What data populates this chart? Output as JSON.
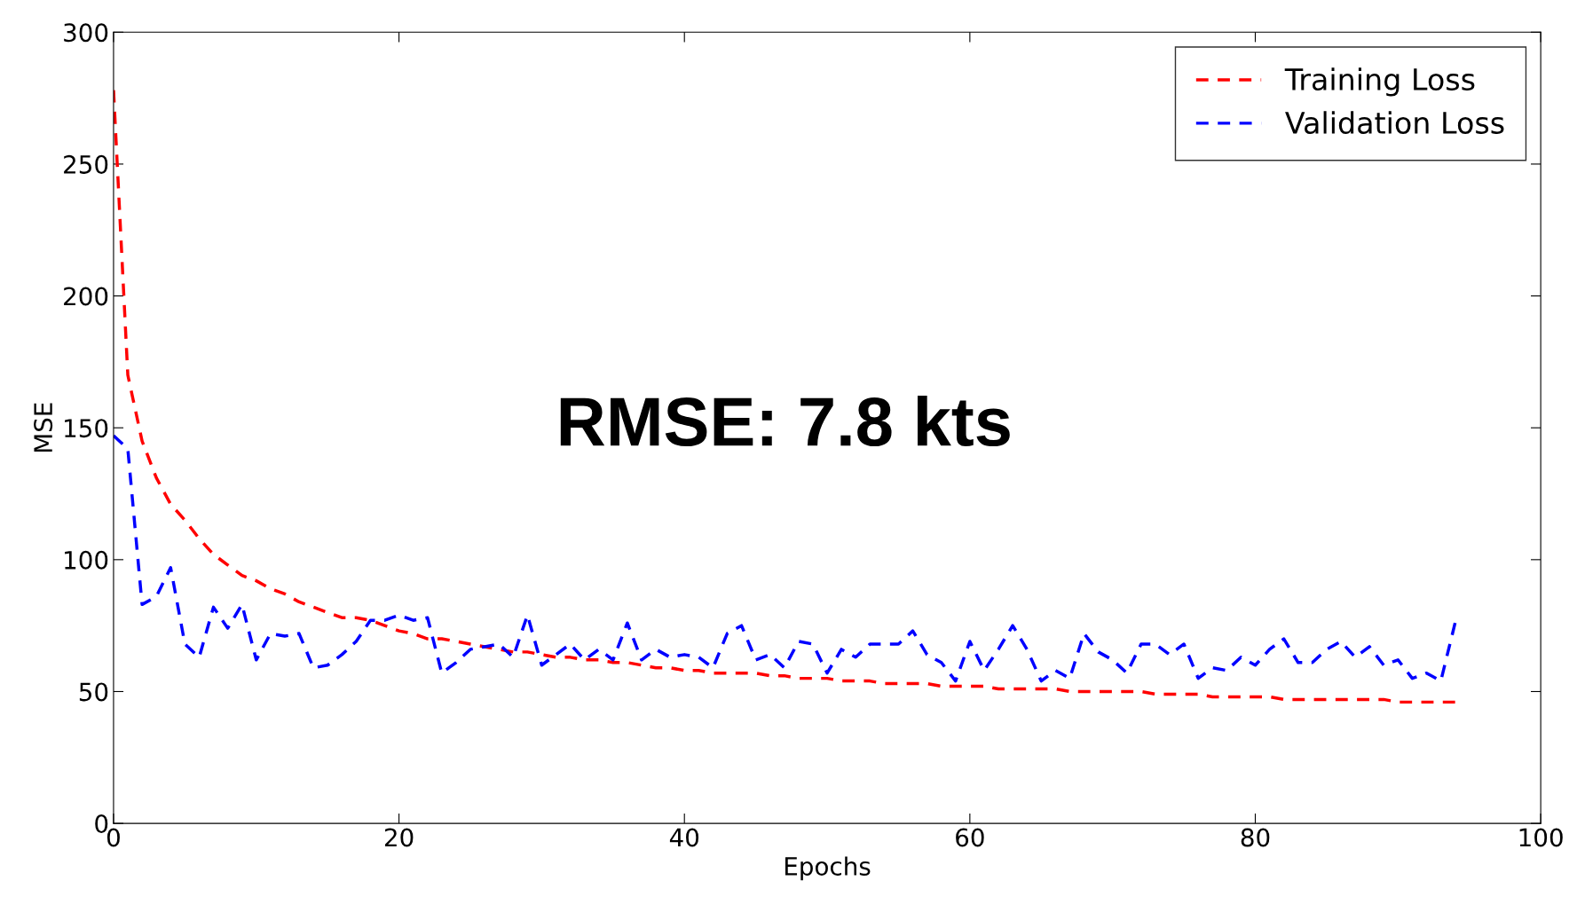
{
  "chart_data": {
    "type": "line",
    "xlabel": "Epochs",
    "ylabel": "MSE",
    "x": [
      0,
      1,
      2,
      3,
      4,
      5,
      6,
      7,
      8,
      9,
      10,
      11,
      12,
      13,
      14,
      15,
      16,
      17,
      18,
      19,
      20,
      21,
      22,
      23,
      24,
      25,
      26,
      27,
      28,
      29,
      30,
      31,
      32,
      33,
      34,
      35,
      36,
      37,
      38,
      39,
      40,
      41,
      42,
      43,
      44,
      45,
      46,
      47,
      48,
      49,
      50,
      51,
      52,
      53,
      54,
      55,
      56,
      57,
      58,
      59,
      60,
      61,
      62,
      63,
      64,
      65,
      66,
      67,
      68,
      69,
      70,
      71,
      72,
      73,
      74,
      75,
      76,
      77,
      78,
      79,
      80,
      81,
      82,
      83,
      84,
      85,
      86,
      87,
      88,
      89,
      90,
      91,
      92,
      93,
      94
    ],
    "series": [
      {
        "name": "Training Loss",
        "color": "#ff0000",
        "values": [
          278,
          170,
          145,
          131,
          121,
          115,
          108,
          102,
          98,
          94,
          92,
          89,
          87,
          84,
          82,
          80,
          78,
          78,
          77,
          75,
          73,
          72,
          70,
          70,
          69,
          68,
          67,
          66,
          65,
          65,
          64,
          63,
          63,
          62,
          62,
          61,
          61,
          60,
          59,
          59,
          58,
          58,
          57,
          57,
          57,
          57,
          56,
          56,
          55,
          55,
          55,
          54,
          54,
          54,
          53,
          53,
          53,
          53,
          52,
          52,
          52,
          52,
          51,
          51,
          51,
          51,
          51,
          50,
          50,
          50,
          50,
          50,
          50,
          49,
          49,
          49,
          49,
          48,
          48,
          48,
          48,
          48,
          47,
          47,
          47,
          47,
          47,
          47,
          47,
          47,
          46,
          46,
          46,
          46,
          46
        ]
      },
      {
        "name": "Validation Loss",
        "color": "#0000ff",
        "values": [
          147,
          142,
          83,
          86,
          97,
          68,
          63,
          82,
          74,
          83,
          62,
          72,
          71,
          72,
          59,
          60,
          64,
          69,
          77,
          77,
          79,
          77,
          78,
          57,
          61,
          66,
          67,
          68,
          63,
          79,
          60,
          64,
          68,
          62,
          66,
          62,
          76,
          62,
          66,
          63,
          64,
          63,
          59,
          72,
          75,
          62,
          64,
          59,
          69,
          68,
          57,
          66,
          63,
          68,
          68,
          68,
          73,
          64,
          61,
          54,
          69,
          58,
          66,
          75,
          66,
          54,
          58,
          55,
          72,
          65,
          62,
          57,
          68,
          68,
          64,
          68,
          55,
          59,
          58,
          63,
          60,
          66,
          70,
          61,
          61,
          66,
          69,
          63,
          67,
          60,
          62,
          55,
          57,
          54,
          76
        ]
      }
    ],
    "xlim": [
      0,
      100
    ],
    "xticks": [
      0,
      20,
      40,
      60,
      80,
      100
    ],
    "ylim": [
      0,
      300
    ],
    "yticks": [
      0,
      50,
      100,
      150,
      200,
      250,
      300
    ],
    "line_style": "dashed",
    "grid": false,
    "legend": "top right",
    "annotations": [
      "RMSE: 7.8 kts"
    ]
  }
}
